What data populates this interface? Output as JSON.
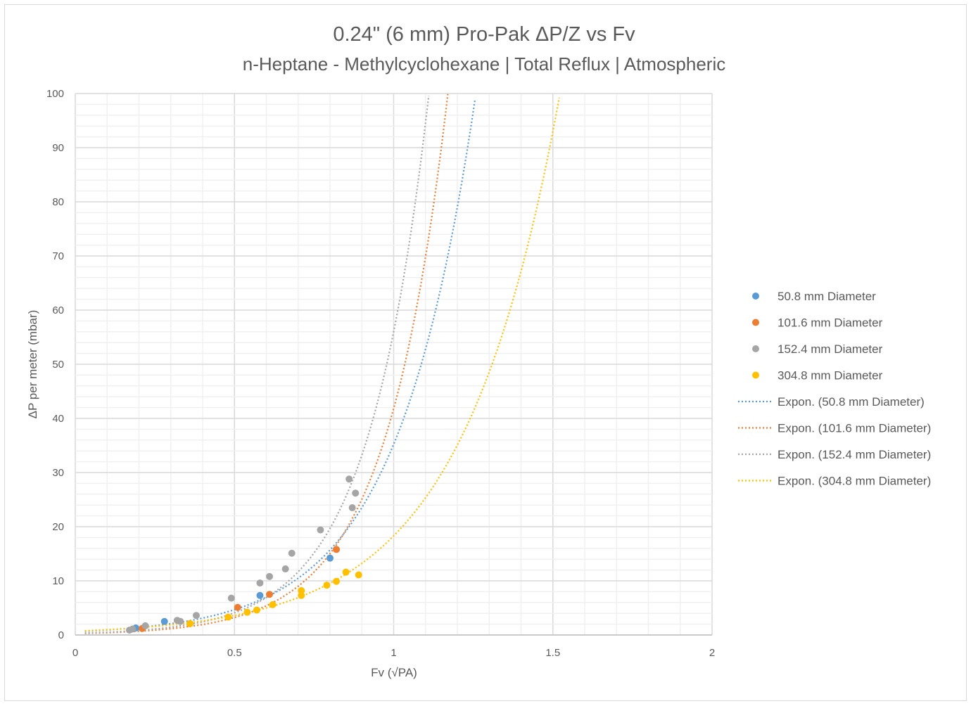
{
  "chart_data": {
    "type": "scatter",
    "title": "0.24\" (6 mm) Pro-Pak ΔP/Z vs Fv",
    "subtitle": "n-Heptane - Methylcyclohexane | Total Reflux | Atmospheric",
    "xlabel": "Fv (√PA)",
    "ylabel": "ΔP per meter (mbar)",
    "xlim": [
      0,
      2
    ],
    "ylim": [
      0,
      100
    ],
    "x_ticks": [
      "0",
      "0.5",
      "1",
      "1.5",
      "2"
    ],
    "y_ticks": [
      "0",
      "10",
      "20",
      "30",
      "40",
      "50",
      "60",
      "70",
      "80",
      "90",
      "100"
    ],
    "grid": true,
    "legend_position": "right",
    "series": [
      {
        "name": "50.8 mm Diameter",
        "color": "#5b9bd5",
        "points": [
          [
            0.19,
            1.3
          ],
          [
            0.28,
            2.5
          ],
          [
            0.58,
            7.3
          ],
          [
            0.8,
            14.2
          ]
        ]
      },
      {
        "name": "101.6 mm Diameter",
        "color": "#ed7d31",
        "points": [
          [
            0.21,
            1.2
          ],
          [
            0.36,
            2.1
          ],
          [
            0.51,
            5.1
          ],
          [
            0.61,
            7.5
          ],
          [
            0.82,
            15.8
          ]
        ]
      },
      {
        "name": "152.4 mm Diameter",
        "color": "#a5a5a5",
        "points": [
          [
            0.17,
            0.9
          ],
          [
            0.18,
            1.1
          ],
          [
            0.22,
            1.7
          ],
          [
            0.32,
            2.7
          ],
          [
            0.33,
            2.5
          ],
          [
            0.38,
            3.6
          ],
          [
            0.49,
            6.8
          ],
          [
            0.58,
            9.6
          ],
          [
            0.61,
            10.8
          ],
          [
            0.66,
            12.2
          ],
          [
            0.68,
            15.1
          ],
          [
            0.77,
            19.4
          ],
          [
            0.86,
            28.8
          ],
          [
            0.88,
            26.2
          ],
          [
            0.87,
            23.5
          ]
        ]
      },
      {
        "name": "304.8 mm Diameter",
        "color": "#ffc000",
        "points": [
          [
            0.36,
            2.1
          ],
          [
            0.48,
            3.3
          ],
          [
            0.54,
            4.2
          ],
          [
            0.57,
            4.6
          ],
          [
            0.62,
            5.6
          ],
          [
            0.71,
            8.2
          ],
          [
            0.71,
            7.3
          ],
          [
            0.79,
            9.2
          ],
          [
            0.82,
            9.9
          ],
          [
            0.85,
            11.6
          ],
          [
            0.89,
            11.1
          ]
        ]
      }
    ],
    "trendlines": [
      {
        "name": "Expon. (50.8 mm Diameter)",
        "color": "#5b9bd5",
        "type": "exponential",
        "a": 0.62,
        "b": 4.04
      },
      {
        "name": "Expon. (101.6 mm Diameter)",
        "color": "#ed7d31",
        "type": "exponential",
        "a": 0.25,
        "b": 5.12
      },
      {
        "name": "Expon. (152.4 mm Diameter)",
        "color": "#a5a5a5",
        "type": "exponential",
        "a": 0.3,
        "b": 5.23
      },
      {
        "name": "Expon. (304.8 mm Diameter)",
        "color": "#ffc000",
        "type": "exponential",
        "a": 0.71,
        "b": 3.25
      }
    ]
  }
}
